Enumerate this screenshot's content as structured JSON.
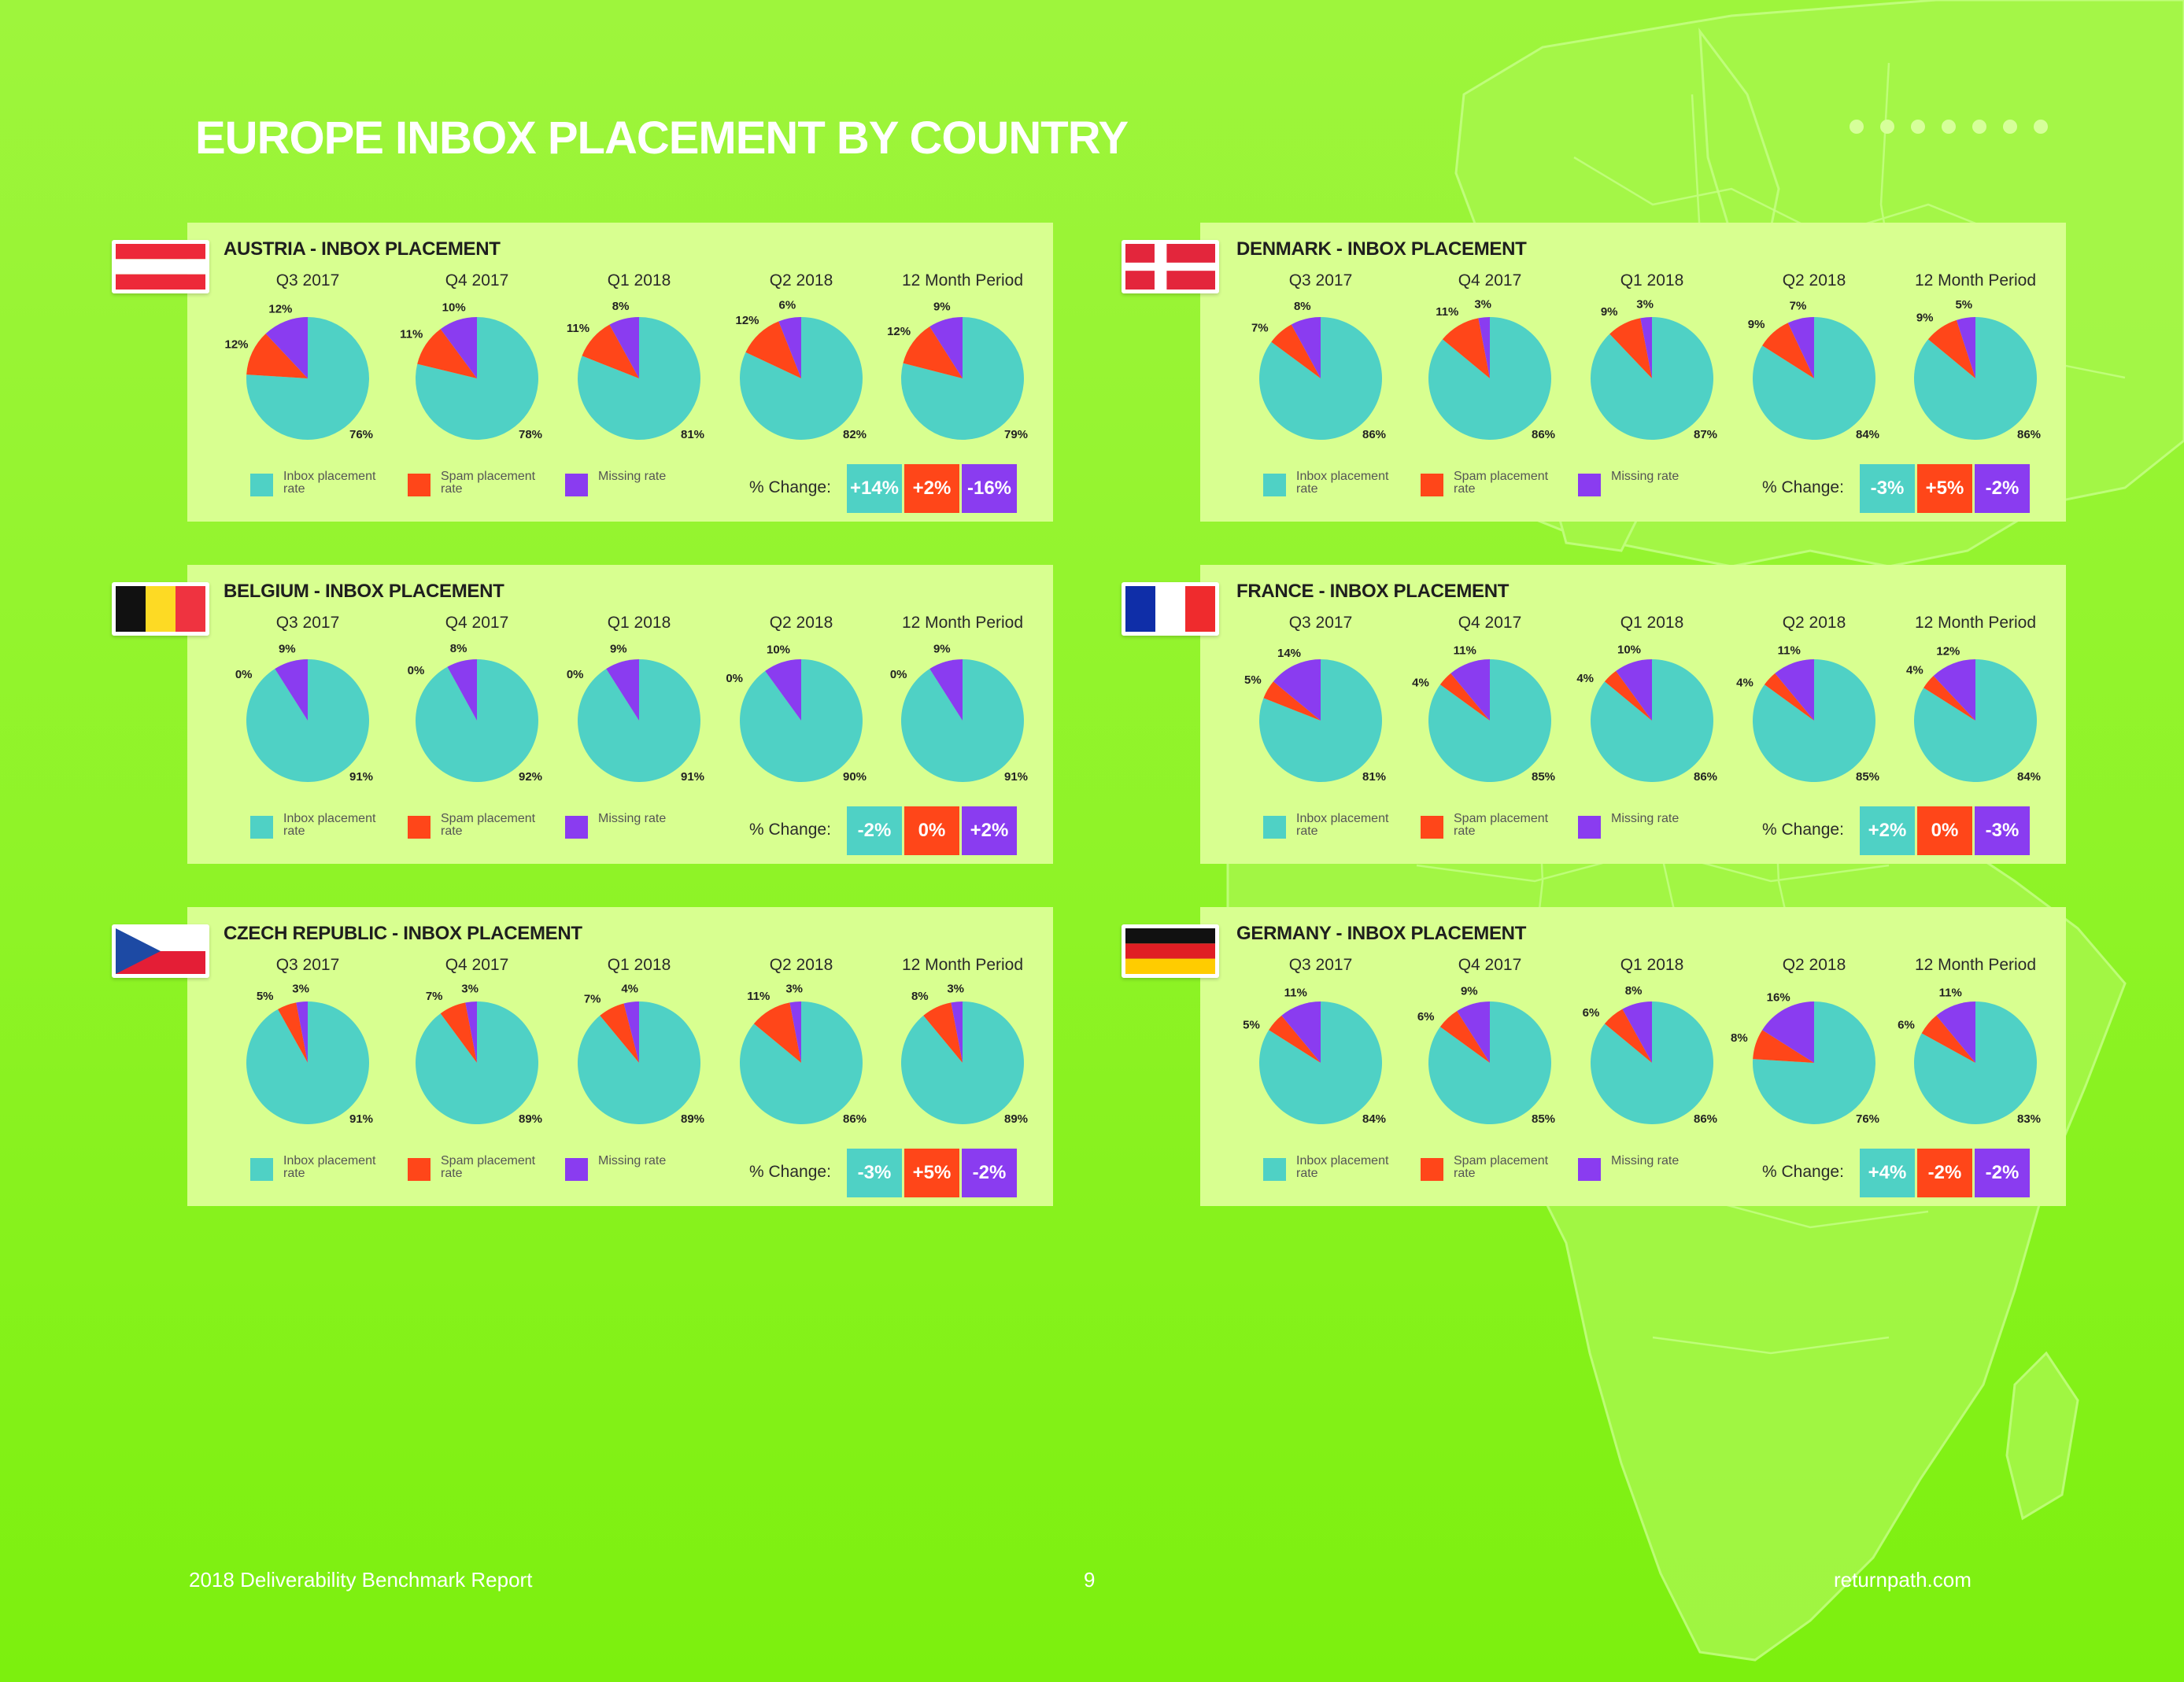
{
  "title": "EUROPE INBOX PLACEMENT BY COUNTRY",
  "colors": {
    "inbox": "#4fd1c5",
    "spam": "#ff4619",
    "missing": "#8a3cf0",
    "panel": "#d8ff90"
  },
  "legend": {
    "inbox": "Inbox placement rate",
    "spam": "Spam placement rate",
    "missing": "Missing rate"
  },
  "change_label": "% Change:",
  "footer": {
    "left": "2018 Deliverability Benchmark Report",
    "page": "9",
    "right": "returnpath.com"
  },
  "chart_data": [
    {
      "type": "pie",
      "title": "AUSTRIA - INBOX PLACEMENT",
      "flag": "austria",
      "categories": [
        "Q3 2017",
        "Q4 2017",
        "Q1 2018",
        "Q2 2018",
        "12 Month Period"
      ],
      "series": [
        {
          "name": "Inbox placement rate",
          "values": [
            76,
            78,
            81,
            82,
            79
          ]
        },
        {
          "name": "Spam placement rate",
          "values": [
            12,
            11,
            11,
            12,
            12
          ]
        },
        {
          "name": "Missing rate",
          "values": [
            12,
            10,
            8,
            6,
            9
          ]
        }
      ],
      "change": [
        "+14%",
        "+2%",
        "-16%"
      ]
    },
    {
      "type": "pie",
      "title": "DENMARK - INBOX PLACEMENT",
      "flag": "denmark",
      "categories": [
        "Q3 2017",
        "Q4 2017",
        "Q1 2018",
        "Q2 2018",
        "12 Month Period"
      ],
      "series": [
        {
          "name": "Inbox placement rate",
          "values": [
            86,
            86,
            87,
            84,
            86
          ]
        },
        {
          "name": "Spam placement rate",
          "values": [
            7,
            11,
            9,
            9,
            9
          ]
        },
        {
          "name": "Missing rate",
          "values": [
            8,
            3,
            3,
            7,
            5
          ]
        }
      ],
      "change": [
        "-3%",
        "+5%",
        "-2%"
      ]
    },
    {
      "type": "pie",
      "title": "BELGIUM - INBOX PLACEMENT",
      "flag": "belgium",
      "categories": [
        "Q3 2017",
        "Q4 2017",
        "Q1 2018",
        "Q2 2018",
        "12 Month Period"
      ],
      "series": [
        {
          "name": "Inbox placement rate",
          "values": [
            91,
            92,
            91,
            90,
            91
          ]
        },
        {
          "name": "Spam placement rate",
          "values": [
            0,
            0,
            0,
            0,
            0
          ]
        },
        {
          "name": "Missing rate",
          "values": [
            9,
            8,
            9,
            10,
            9
          ]
        }
      ],
      "change": [
        "-2%",
        "0%",
        "+2%"
      ]
    },
    {
      "type": "pie",
      "title": "FRANCE - INBOX PLACEMENT",
      "flag": "france",
      "categories": [
        "Q3 2017",
        "Q4 2017",
        "Q1 2018",
        "Q2 2018",
        "12 Month Period"
      ],
      "series": [
        {
          "name": "Inbox placement rate",
          "values": [
            81,
            85,
            86,
            85,
            84
          ]
        },
        {
          "name": "Spam placement rate",
          "values": [
            5,
            4,
            4,
            4,
            4
          ]
        },
        {
          "name": "Missing rate",
          "values": [
            14,
            11,
            10,
            11,
            12
          ]
        }
      ],
      "change": [
        "+2%",
        "0%",
        "-3%"
      ]
    },
    {
      "type": "pie",
      "title": "CZECH REPUBLIC - INBOX PLACEMENT",
      "flag": "czech",
      "categories": [
        "Q3 2017",
        "Q4 2017",
        "Q1 2018",
        "Q2 2018",
        "12 Month Period"
      ],
      "series": [
        {
          "name": "Inbox placement rate",
          "values": [
            91,
            89,
            89,
            86,
            89
          ]
        },
        {
          "name": "Spam placement rate",
          "values": [
            5,
            7,
            7,
            11,
            8
          ]
        },
        {
          "name": "Missing rate",
          "values": [
            3,
            3,
            4,
            3,
            3
          ]
        }
      ],
      "change": [
        "-3%",
        "+5%",
        "-2%"
      ]
    },
    {
      "type": "pie",
      "title": "GERMANY - INBOX PLACEMENT",
      "flag": "germany",
      "categories": [
        "Q3 2017",
        "Q4 2017",
        "Q1 2018",
        "Q2 2018",
        "12 Month Period"
      ],
      "series": [
        {
          "name": "Inbox placement rate",
          "values": [
            84,
            85,
            86,
            76,
            83
          ]
        },
        {
          "name": "Spam placement rate",
          "values": [
            5,
            6,
            6,
            8,
            6
          ]
        },
        {
          "name": "Missing rate",
          "values": [
            11,
            9,
            8,
            16,
            11
          ]
        }
      ],
      "change": [
        "+4%",
        "-2%",
        "-2%"
      ]
    }
  ]
}
